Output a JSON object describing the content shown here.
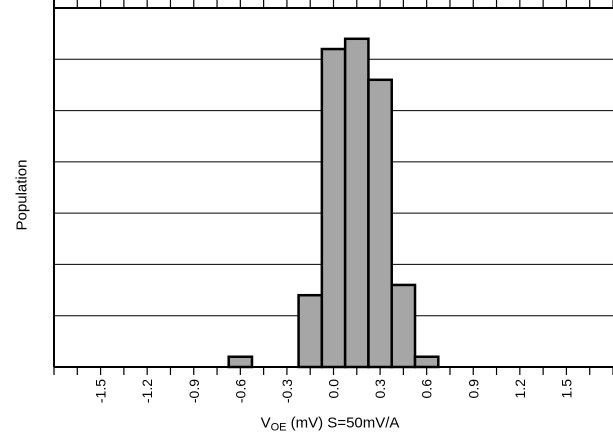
{
  "chart_data": {
    "type": "bar",
    "title": "",
    "xlabel_main": "V",
    "xlabel_sub": "OE",
    "xlabel_rest": " (mV) S=50mV/A",
    "ylabel": "Population",
    "xlim": [
      -1.8,
      1.8
    ],
    "ylim": [
      0,
      7
    ],
    "bin_width": 0.15,
    "bins": [
      {
        "x": -0.6,
        "value": 0.2
      },
      {
        "x": -0.15,
        "value": 1.4
      },
      {
        "x": 0.0,
        "value": 6.2
      },
      {
        "x": 0.15,
        "value": 6.4
      },
      {
        "x": 0.3,
        "value": 5.6
      },
      {
        "x": 0.45,
        "value": 1.6
      },
      {
        "x": 0.6,
        "value": 0.2
      }
    ],
    "xticks": [
      "-1.5",
      "-1.2",
      "-0.9",
      "-0.6",
      "-0.3",
      "0.0",
      "0.3",
      "0.6",
      "0.9",
      "1.2",
      "1.5"
    ],
    "grid": true,
    "bar_color": "#a6a6a6"
  }
}
